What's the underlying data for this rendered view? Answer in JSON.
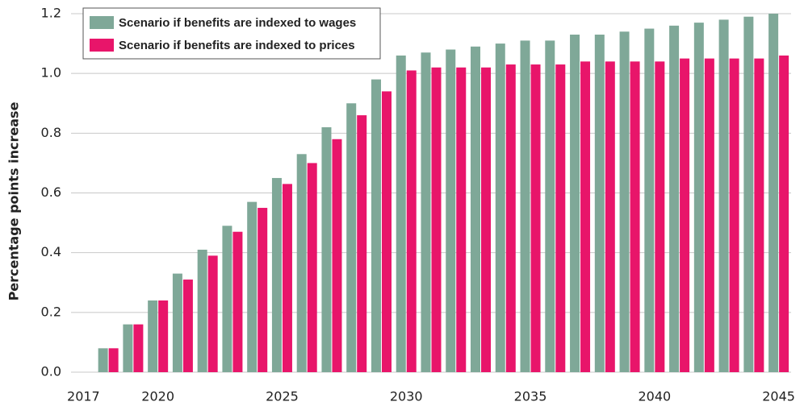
{
  "chart_data": {
    "type": "bar",
    "y_label": "Percentage points increase",
    "categories": [
      "2017",
      null,
      null,
      "2020",
      null,
      null,
      null,
      null,
      "2025",
      null,
      null,
      null,
      null,
      "2030",
      null,
      null,
      null,
      null,
      "2035",
      null,
      null,
      null,
      null,
      "2040",
      null,
      null,
      null,
      null,
      "2045"
    ],
    "series": [
      {
        "name": "Scenario if benefits are indexed to wages",
        "color": "#7fa898",
        "values": [
          0,
          0.08,
          0.16,
          0.24,
          0.33,
          0.41,
          0.49,
          0.57,
          0.65,
          0.73,
          0.82,
          0.9,
          0.98,
          1.06,
          1.07,
          1.08,
          1.09,
          1.1,
          1.11,
          1.11,
          1.13,
          1.13,
          1.14,
          1.15,
          1.16,
          1.17,
          1.18,
          1.19,
          1.2
        ]
      },
      {
        "name": "Scenario if benefits are indexed to prices",
        "color": "#e8156a",
        "values": [
          0,
          0.08,
          0.16,
          0.24,
          0.31,
          0.39,
          0.47,
          0.55,
          0.63,
          0.7,
          0.78,
          0.86,
          0.94,
          1.01,
          1.02,
          1.02,
          1.02,
          1.03,
          1.03,
          1.03,
          1.04,
          1.04,
          1.04,
          1.04,
          1.05,
          1.05,
          1.05,
          1.05,
          1.06
        ]
      }
    ],
    "ylim": [
      0,
      1.2
    ],
    "yticks": [
      {
        "value": 0,
        "label": "0.0"
      },
      0.2,
      0.4,
      0.6,
      0.8,
      {
        "value": 1,
        "label": "1.0"
      },
      1.2
    ],
    "grid": true,
    "legend": "upper left"
  }
}
